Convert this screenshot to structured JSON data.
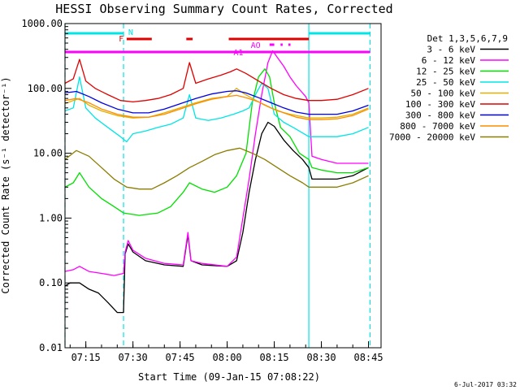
{
  "chart_data": {
    "type": "line",
    "title": "HESSI Observing Summary Count Rates, Corrected",
    "xlabel": "Start Time (09-Jan-15 07:08:22)",
    "ylabel": "Corrected Count Rate (s⁻¹ detector⁻¹)",
    "y_scale": "log",
    "ylim": [
      0.01,
      1000
    ],
    "xlim": [
      "07:08:22",
      "08:49:00"
    ],
    "x_tick_labels": [
      "07:15",
      "07:30",
      "07:45",
      "08:00",
      "08:15",
      "08:30",
      "08:45"
    ],
    "y_tick_labels": [
      "0.01",
      "0.10",
      "1.00",
      "10.00",
      "100.00",
      "1000.00"
    ],
    "legend_title": "Det 1,3,5,6,7,9",
    "legend_position": "right",
    "footer": "6-Jul-2017 03:32",
    "flags": [
      {
        "label": "N",
        "color": "#00e5e5",
        "spans": [
          [
            "07:08:22",
            "07:27:00"
          ],
          [
            "08:26:00",
            "08:45:30"
          ]
        ]
      },
      {
        "label": "F",
        "color": "#e00000",
        "spans": [
          [
            "07:28:00",
            "07:36:00"
          ],
          [
            "07:47:00",
            "07:49:00"
          ],
          [
            "08:00:30",
            "08:26:00"
          ]
        ]
      },
      {
        "label": "AO",
        "color": "#ff00ff",
        "spans": [
          [
            "08:13:30",
            "08:15:00"
          ],
          [
            "08:17:00",
            "08:17:40"
          ],
          [
            "08:19:30",
            "08:20:10"
          ]
        ]
      },
      {
        "label": "A1",
        "color": "#ff00ff",
        "spans": [
          [
            "07:08:22",
            "08:45:30"
          ]
        ]
      }
    ],
    "vertical_lines": [
      {
        "time": "07:08:22",
        "color": "#00e5e5",
        "style": "dashed"
      },
      {
        "time": "07:27:00",
        "color": "#00e5e5",
        "style": "dashed"
      },
      {
        "time": "08:26:00",
        "color": "#00e5e5",
        "style": "solid"
      },
      {
        "time": "08:45:30",
        "color": "#00e5e5",
        "style": "dashed"
      }
    ],
    "series": [
      {
        "name": "3 - 6 keV",
        "color": "#000000",
        "points": [
          [
            "07:08:22",
            0.09
          ],
          [
            "07:10:00",
            0.1
          ],
          [
            "07:13:00",
            0.1
          ],
          [
            "07:16:00",
            0.08
          ],
          [
            "07:19:00",
            0.07
          ],
          [
            "07:22:00",
            0.05
          ],
          [
            "07:25:00",
            0.035
          ],
          [
            "07:27:00",
            0.035
          ],
          [
            "07:27:30",
            0.28
          ],
          [
            "07:28:30",
            0.4
          ],
          [
            "07:30:00",
            0.3
          ],
          [
            "07:34:00",
            0.22
          ],
          [
            "07:40:00",
            0.19
          ],
          [
            "07:46:00",
            0.18
          ],
          [
            "07:47:30",
            0.55
          ],
          [
            "07:48:30",
            0.22
          ],
          [
            "07:52:00",
            0.19
          ],
          [
            "08:00:00",
            0.18
          ],
          [
            "08:03:00",
            0.22
          ],
          [
            "08:05:00",
            0.6
          ],
          [
            "08:07:00",
            2.5
          ],
          [
            "08:09:00",
            8.0
          ],
          [
            "08:11:00",
            20.0
          ],
          [
            "08:13:00",
            30.0
          ],
          [
            "08:15:00",
            26.0
          ],
          [
            "08:18:00",
            16.0
          ],
          [
            "08:21:00",
            11.0
          ],
          [
            "08:24:00",
            8.0
          ],
          [
            "08:26:00",
            6.0
          ],
          [
            "08:27:00",
            4.0
          ],
          [
            "08:30:00",
            4.0
          ],
          [
            "08:35:00",
            4.0
          ],
          [
            "08:40:00",
            4.5
          ],
          [
            "08:45:00",
            6.0
          ]
        ]
      },
      {
        "name": "6 - 12 keV",
        "color": "#ff00ff",
        "points": [
          [
            "07:08:22",
            0.15
          ],
          [
            "07:11:00",
            0.16
          ],
          [
            "07:13:00",
            0.18
          ],
          [
            "07:16:00",
            0.15
          ],
          [
            "07:20:00",
            0.14
          ],
          [
            "07:24:00",
            0.13
          ],
          [
            "07:27:00",
            0.14
          ],
          [
            "07:27:30",
            0.3
          ],
          [
            "07:28:30",
            0.45
          ],
          [
            "07:30:00",
            0.32
          ],
          [
            "07:34:00",
            0.24
          ],
          [
            "07:40:00",
            0.2
          ],
          [
            "07:46:00",
            0.19
          ],
          [
            "07:47:30",
            0.6
          ],
          [
            "07:48:30",
            0.22
          ],
          [
            "07:52:00",
            0.2
          ],
          [
            "08:00:00",
            0.18
          ],
          [
            "08:03:00",
            0.25
          ],
          [
            "08:05:00",
            1.0
          ],
          [
            "08:07:00",
            4.0
          ],
          [
            "08:09:00",
            20.0
          ],
          [
            "08:11:00",
            80.0
          ],
          [
            "08:13:00",
            250.0
          ],
          [
            "08:14:30",
            380.0
          ],
          [
            "08:16:00",
            300.0
          ],
          [
            "08:18:00",
            220.0
          ],
          [
            "08:20:00",
            150.0
          ],
          [
            "08:22:00",
            110.0
          ],
          [
            "08:25:00",
            75.0
          ],
          [
            "08:26:00",
            60.0
          ],
          [
            "08:27:00",
            9.0
          ],
          [
            "08:30:00",
            8.0
          ],
          [
            "08:35:00",
            7.0
          ],
          [
            "08:40:00",
            7.0
          ],
          [
            "08:45:00",
            7.0
          ]
        ]
      },
      {
        "name": "12 - 25 keV",
        "color": "#00e000",
        "points": [
          [
            "07:08:22",
            3.0
          ],
          [
            "07:11:00",
            3.5
          ],
          [
            "07:13:00",
            5.0
          ],
          [
            "07:16:00",
            3.0
          ],
          [
            "07:20:00",
            2.0
          ],
          [
            "07:24:00",
            1.5
          ],
          [
            "07:27:00",
            1.2
          ],
          [
            "07:32:00",
            1.1
          ],
          [
            "07:38:00",
            1.2
          ],
          [
            "07:42:00",
            1.5
          ],
          [
            "07:46:00",
            2.5
          ],
          [
            "07:48:00",
            3.5
          ],
          [
            "07:52:00",
            2.8
          ],
          [
            "07:56:00",
            2.5
          ],
          [
            "08:00:00",
            3.0
          ],
          [
            "08:03:00",
            4.5
          ],
          [
            "08:06:00",
            10.0
          ],
          [
            "08:08:00",
            60.0
          ],
          [
            "08:10:00",
            150.0
          ],
          [
            "08:12:00",
            200.0
          ],
          [
            "08:13:30",
            150.0
          ],
          [
            "08:15:00",
            60.0
          ],
          [
            "08:17:00",
            25.0
          ],
          [
            "08:20:00",
            18.0
          ],
          [
            "08:23:00",
            10.0
          ],
          [
            "08:26:00",
            8.0
          ],
          [
            "08:27:00",
            6.0
          ],
          [
            "08:30:00",
            5.5
          ],
          [
            "08:35:00",
            5.0
          ],
          [
            "08:40:00",
            5.0
          ],
          [
            "08:45:00",
            6.0
          ]
        ]
      },
      {
        "name": "25 - 50 keV",
        "color": "#00e5e5",
        "points": [
          [
            "07:08:22",
            45.0
          ],
          [
            "07:11:00",
            50.0
          ],
          [
            "07:13:00",
            150.0
          ],
          [
            "07:15:00",
            50.0
          ],
          [
            "07:18:00",
            35.0
          ],
          [
            "07:22:00",
            25.0
          ],
          [
            "07:26:00",
            18.0
          ],
          [
            "07:28:00",
            15.0
          ],
          [
            "07:30:00",
            20.0
          ],
          [
            "07:34:00",
            22.0
          ],
          [
            "07:38:00",
            25.0
          ],
          [
            "07:42:00",
            28.0
          ],
          [
            "07:46:00",
            35.0
          ],
          [
            "07:48:00",
            80.0
          ],
          [
            "07:50:00",
            35.0
          ],
          [
            "07:54:00",
            32.0
          ],
          [
            "07:58:00",
            35.0
          ],
          [
            "08:02:00",
            40.0
          ],
          [
            "08:05:00",
            45.0
          ],
          [
            "08:07:00",
            50.0
          ],
          [
            "08:09:00",
            80.0
          ],
          [
            "08:11:00",
            120.0
          ],
          [
            "08:13:00",
            100.0
          ],
          [
            "08:15:00",
            40.0
          ],
          [
            "08:18:00",
            30.0
          ],
          [
            "08:21:00",
            25.0
          ],
          [
            "08:26:00",
            18.0
          ],
          [
            "08:30:00",
            18.0
          ],
          [
            "08:35:00",
            18.0
          ],
          [
            "08:40:00",
            20.0
          ],
          [
            "08:45:00",
            25.0
          ]
        ]
      },
      {
        "name": "50 - 100 keV",
        "color": "#e0b000",
        "points": [
          [
            "07:08:22",
            58.0
          ],
          [
            "07:11:00",
            65.0
          ],
          [
            "07:13:00",
            70.0
          ],
          [
            "07:16:00",
            55.0
          ],
          [
            "07:20:00",
            45.0
          ],
          [
            "07:25:00",
            38.0
          ],
          [
            "07:30:00",
            35.0
          ],
          [
            "07:35:00",
            36.0
          ],
          [
            "07:40:00",
            42.0
          ],
          [
            "07:45:00",
            50.0
          ],
          [
            "07:50:00",
            60.0
          ],
          [
            "07:55:00",
            70.0
          ],
          [
            "08:00:00",
            75.0
          ],
          [
            "08:03:00",
            100.0
          ],
          [
            "08:05:00",
            85.0
          ],
          [
            "08:08:00",
            70.0
          ],
          [
            "08:12:00",
            55.0
          ],
          [
            "08:16:00",
            45.0
          ],
          [
            "08:20:00",
            40.0
          ],
          [
            "08:26:00",
            35.0
          ],
          [
            "08:30:00",
            35.0
          ],
          [
            "08:35:00",
            36.0
          ],
          [
            "08:40:00",
            40.0
          ],
          [
            "08:45:00",
            50.0
          ]
        ]
      },
      {
        "name": "100 - 300 keV",
        "color": "#e00000",
        "points": [
          [
            "07:08:22",
            120.0
          ],
          [
            "07:11:00",
            140.0
          ],
          [
            "07:13:00",
            280.0
          ],
          [
            "07:15:00",
            130.0
          ],
          [
            "07:18:00",
            100.0
          ],
          [
            "07:22:00",
            80.0
          ],
          [
            "07:26:00",
            65.0
          ],
          [
            "07:30:00",
            62.0
          ],
          [
            "07:34:00",
            65.0
          ],
          [
            "07:38:00",
            70.0
          ],
          [
            "07:42:00",
            80.0
          ],
          [
            "07:46:00",
            100.0
          ],
          [
            "07:48:00",
            250.0
          ],
          [
            "07:50:00",
            120.0
          ],
          [
            "07:54:00",
            140.0
          ],
          [
            "07:58:00",
            160.0
          ],
          [
            "08:01:00",
            180.0
          ],
          [
            "08:03:00",
            200.0
          ],
          [
            "08:06:00",
            170.0
          ],
          [
            "08:10:00",
            130.0
          ],
          [
            "08:14:00",
            100.0
          ],
          [
            "08:18:00",
            80.0
          ],
          [
            "08:22:00",
            70.0
          ],
          [
            "08:26:00",
            65.0
          ],
          [
            "08:30:00",
            65.0
          ],
          [
            "08:35:00",
            68.0
          ],
          [
            "08:40:00",
            80.0
          ],
          [
            "08:45:00",
            100.0
          ]
        ]
      },
      {
        "name": "300 - 800 keV",
        "color": "#0000e0",
        "points": [
          [
            "07:08:22",
            85.0
          ],
          [
            "07:12:00",
            90.0
          ],
          [
            "07:16:00",
            75.0
          ],
          [
            "07:20:00",
            60.0
          ],
          [
            "07:25:00",
            48.0
          ],
          [
            "07:30:00",
            42.0
          ],
          [
            "07:35:00",
            42.0
          ],
          [
            "07:40:00",
            48.0
          ],
          [
            "07:45:00",
            58.0
          ],
          [
            "07:50:00",
            70.0
          ],
          [
            "07:55:00",
            82.0
          ],
          [
            "08:00:00",
            90.0
          ],
          [
            "08:03:00",
            92.0
          ],
          [
            "08:06:00",
            85.0
          ],
          [
            "08:10:00",
            72.0
          ],
          [
            "08:14:00",
            60.0
          ],
          [
            "08:18:00",
            50.0
          ],
          [
            "08:22:00",
            43.0
          ],
          [
            "08:26:00",
            40.0
          ],
          [
            "08:30:00",
            40.0
          ],
          [
            "08:35:00",
            40.0
          ],
          [
            "08:40:00",
            45.0
          ],
          [
            "08:45:00",
            55.0
          ]
        ]
      },
      {
        "name": "800 - 7000 keV",
        "color": "#ff8c00",
        "points": [
          [
            "07:08:22",
            65.0
          ],
          [
            "07:12:00",
            70.0
          ],
          [
            "07:16:00",
            60.0
          ],
          [
            "07:20:00",
            48.0
          ],
          [
            "07:25:00",
            40.0
          ],
          [
            "07:30:00",
            36.0
          ],
          [
            "07:35:00",
            36.0
          ],
          [
            "07:40:00",
            40.0
          ],
          [
            "07:45:00",
            48.0
          ],
          [
            "07:50:00",
            58.0
          ],
          [
            "07:55:00",
            68.0
          ],
          [
            "08:00:00",
            75.0
          ],
          [
            "08:03:00",
            78.0
          ],
          [
            "08:06:00",
            72.0
          ],
          [
            "08:10:00",
            62.0
          ],
          [
            "08:14:00",
            50.0
          ],
          [
            "08:18:00",
            42.0
          ],
          [
            "08:22:00",
            36.0
          ],
          [
            "08:26:00",
            33.0
          ],
          [
            "08:30:00",
            33.0
          ],
          [
            "08:35:00",
            34.0
          ],
          [
            "08:40:00",
            38.0
          ],
          [
            "08:45:00",
            48.0
          ]
        ]
      },
      {
        "name": "7000 - 20000 keV",
        "color": "#8b7d00",
        "points": [
          [
            "07:08:22",
            8.0
          ],
          [
            "07:12:00",
            11.0
          ],
          [
            "07:16:00",
            9.0
          ],
          [
            "07:20:00",
            6.0
          ],
          [
            "07:24:00",
            4.0
          ],
          [
            "07:28:00",
            3.0
          ],
          [
            "07:32:00",
            2.8
          ],
          [
            "07:36:00",
            2.8
          ],
          [
            "07:40:00",
            3.5
          ],
          [
            "07:44:00",
            4.5
          ],
          [
            "07:48:00",
            6.0
          ],
          [
            "07:52:00",
            7.5
          ],
          [
            "07:56:00",
            9.5
          ],
          [
            "08:00:00",
            11.0
          ],
          [
            "08:04:00",
            12.0
          ],
          [
            "08:08:00",
            10.0
          ],
          [
            "08:12:00",
            8.0
          ],
          [
            "08:16:00",
            6.0
          ],
          [
            "08:20:00",
            4.5
          ],
          [
            "08:24:00",
            3.5
          ],
          [
            "08:26:00",
            3.0
          ],
          [
            "08:30:00",
            3.0
          ],
          [
            "08:35:00",
            3.0
          ],
          [
            "08:40:00",
            3.5
          ],
          [
            "08:45:00",
            4.5
          ]
        ]
      }
    ]
  }
}
